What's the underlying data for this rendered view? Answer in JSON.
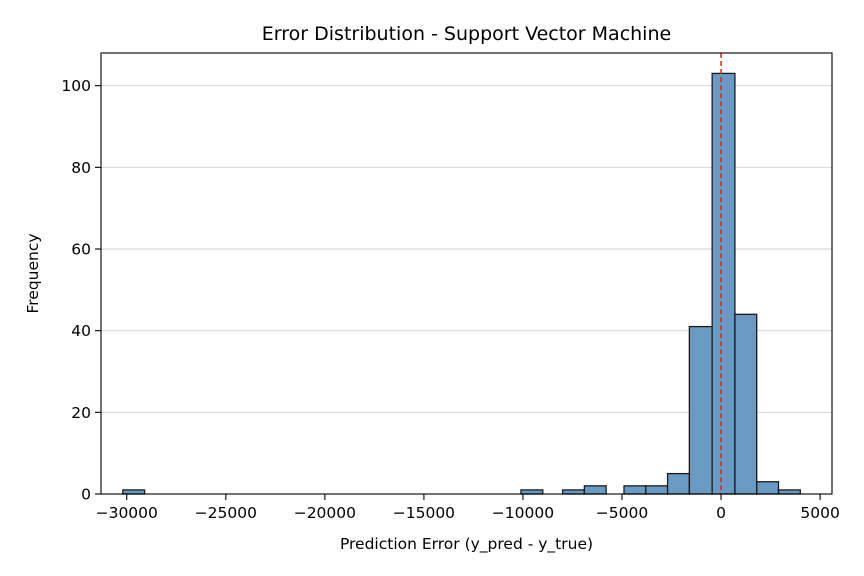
{
  "chart_data": {
    "type": "bar",
    "title": "Error Distribution - Support Vector Machine",
    "xlabel": "Prediction Error (y_pred - y_true)",
    "ylabel": "Frequency",
    "xlim": [
      -31300,
      5600
    ],
    "ylim": [
      0,
      108
    ],
    "xticks": [
      -30000,
      -25000,
      -20000,
      -15000,
      -10000,
      -5000,
      0,
      5000
    ],
    "xtick_labels": [
      "−30000",
      "−25000",
      "−20000",
      "−15000",
      "−10000",
      "−5000",
      "0",
      "5000"
    ],
    "yticks": [
      0,
      20,
      40,
      60,
      80,
      100
    ],
    "ytick_labels": [
      "0",
      "20",
      "40",
      "60",
      "80",
      "100"
    ],
    "grid": "horizontal",
    "reference_line": {
      "x": 0,
      "color": "#d62728",
      "style": "dashed"
    },
    "bar_color": "#6a9ac4",
    "edge_color": "#1a1a1a",
    "bins": [
      {
        "x0": -30200,
        "x1": -29100,
        "count": 1
      },
      {
        "x0": -10100,
        "x1": -9000,
        "count": 1
      },
      {
        "x0": -8000,
        "x1": -6900,
        "count": 1
      },
      {
        "x0": -6900,
        "x1": -5800,
        "count": 2
      },
      {
        "x0": -4900,
        "x1": -3800,
        "count": 2
      },
      {
        "x0": -3800,
        "x1": -2700,
        "count": 2
      },
      {
        "x0": -2700,
        "x1": -1600,
        "count": 5
      },
      {
        "x0": -1600,
        "x1": -450,
        "count": 41
      },
      {
        "x0": -450,
        "x1": 700,
        "count": 103
      },
      {
        "x0": 700,
        "x1": 1800,
        "count": 44
      },
      {
        "x0": 1800,
        "x1": 2900,
        "count": 3
      },
      {
        "x0": 2900,
        "x1": 4000,
        "count": 1
      }
    ]
  }
}
